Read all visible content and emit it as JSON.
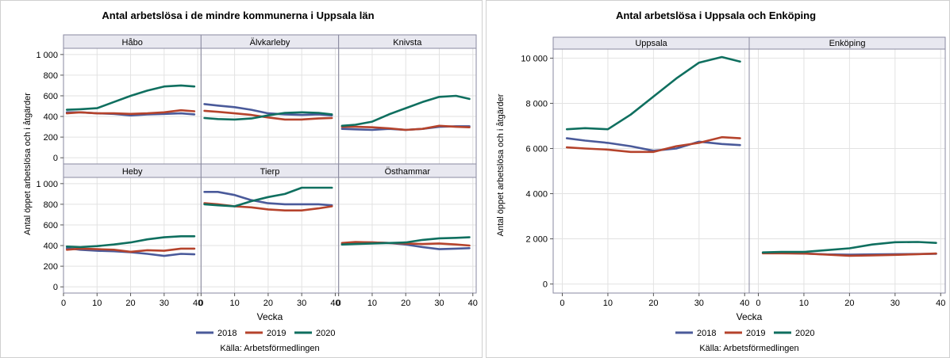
{
  "colors": {
    "2018": "#4a5a9a",
    "2019": "#b5432c",
    "2020": "#0f6f5f",
    "strip": "#e8e8f0",
    "grid": "#e2e2e2"
  },
  "chart_data": [
    {
      "type": "line",
      "title": "Antal arbetslösa i de mindre kommunerna i Uppsala län",
      "xlabel": "Vecka",
      "ylabel": "Antal öppet arbetslösa och i åtgärder",
      "xlim": [
        0,
        41
      ],
      "ylim": [
        -60,
        1060
      ],
      "xticks": [
        0,
        10,
        20,
        30,
        40
      ],
      "yticks": [
        0,
        200,
        400,
        600,
        800,
        1000
      ],
      "ytick_labels": [
        "0",
        "200",
        "400",
        "600",
        "800",
        "1 000"
      ],
      "legend": [
        "2018",
        "2019",
        "2020"
      ],
      "legend_position": "bottom",
      "source": "Källa: Arbetsförmedlingen",
      "panels": [
        {
          "name": "Håbo",
          "x": [
            1,
            5,
            10,
            15,
            20,
            25,
            30,
            35,
            39
          ],
          "series": [
            {
              "name": "2018",
              "values": [
                440,
                440,
                430,
                425,
                410,
                420,
                425,
                430,
                420
              ]
            },
            {
              "name": "2019",
              "values": [
                430,
                440,
                430,
                430,
                425,
                430,
                440,
                460,
                450
              ]
            },
            {
              "name": "2020",
              "values": [
                465,
                470,
                480,
                540,
                600,
                650,
                690,
                700,
                690
              ]
            }
          ]
        },
        {
          "name": "Älvkarleby",
          "x": [
            1,
            5,
            10,
            15,
            20,
            25,
            30,
            35,
            39
          ],
          "series": [
            {
              "name": "2018",
              "values": [
                520,
                505,
                490,
                465,
                430,
                420,
                415,
                420,
                410
              ]
            },
            {
              "name": "2019",
              "values": [
                455,
                445,
                430,
                415,
                390,
                370,
                370,
                380,
                385
              ]
            },
            {
              "name": "2020",
              "values": [
                385,
                375,
                370,
                380,
                410,
                435,
                440,
                435,
                420
              ]
            }
          ]
        },
        {
          "name": "Knivsta",
          "x": [
            1,
            5,
            10,
            15,
            20,
            25,
            30,
            35,
            39
          ],
          "series": [
            {
              "name": "2018",
              "values": [
                280,
                275,
                270,
                280,
                270,
                280,
                300,
                305,
                305
              ]
            },
            {
              "name": "2019",
              "values": [
                300,
                300,
                295,
                285,
                270,
                280,
                310,
                300,
                295
              ]
            },
            {
              "name": "2020",
              "values": [
                310,
                320,
                350,
                420,
                480,
                540,
                590,
                600,
                570
              ]
            }
          ]
        },
        {
          "name": "Heby",
          "x": [
            1,
            5,
            10,
            15,
            20,
            25,
            30,
            35,
            39
          ],
          "series": [
            {
              "name": "2018",
              "values": [
                375,
                360,
                350,
                345,
                335,
                320,
                300,
                320,
                315
              ]
            },
            {
              "name": "2019",
              "values": [
                360,
                370,
                365,
                360,
                340,
                355,
                350,
                370,
                370
              ]
            },
            {
              "name": "2020",
              "values": [
                390,
                385,
                395,
                410,
                430,
                460,
                480,
                490,
                490
              ]
            }
          ]
        },
        {
          "name": "Tierp",
          "x": [
            1,
            5,
            10,
            15,
            20,
            25,
            30,
            35,
            39
          ],
          "series": [
            {
              "name": "2018",
              "values": [
                920,
                920,
                890,
                840,
                810,
                800,
                800,
                800,
                790
              ]
            },
            {
              "name": "2019",
              "values": [
                810,
                800,
                780,
                770,
                750,
                740,
                740,
                760,
                780
              ]
            },
            {
              "name": "2020",
              "values": [
                800,
                790,
                780,
                830,
                870,
                900,
                960,
                960,
                960
              ]
            }
          ]
        },
        {
          "name": "Östhammar",
          "x": [
            1,
            5,
            10,
            15,
            20,
            25,
            30,
            35,
            39
          ],
          "series": [
            {
              "name": "2018",
              "values": [
                415,
                430,
                430,
                425,
                410,
                385,
                365,
                370,
                375
              ]
            },
            {
              "name": "2019",
              "values": [
                425,
                435,
                430,
                425,
                420,
                415,
                420,
                410,
                400
              ]
            },
            {
              "name": "2020",
              "values": [
                410,
                415,
                420,
                425,
                430,
                455,
                470,
                475,
                480
              ]
            }
          ]
        }
      ]
    },
    {
      "type": "line",
      "title": "Antal arbetslösa i Uppsala och Enköping",
      "xlabel": "Vecka",
      "ylabel": "Antal öppet arbetslösa och i åtgärder",
      "xlim": [
        -2,
        41
      ],
      "ylim": [
        -400,
        10400
      ],
      "xticks": [
        0,
        10,
        20,
        30,
        40
      ],
      "yticks": [
        0,
        2000,
        4000,
        6000,
        8000,
        10000
      ],
      "ytick_labels": [
        "0",
        "2 000",
        "4 000",
        "6 000",
        "8 000",
        "10 000"
      ],
      "legend": [
        "2018",
        "2019",
        "2020"
      ],
      "legend_position": "bottom",
      "source": "Källa: Arbetsförmedlingen",
      "panels": [
        {
          "name": "Uppsala",
          "x": [
            1,
            5,
            10,
            15,
            20,
            25,
            30,
            35,
            39
          ],
          "series": [
            {
              "name": "2018",
              "values": [
                6450,
                6350,
                6250,
                6100,
                5900,
                6000,
                6300,
                6200,
                6150
              ]
            },
            {
              "name": "2019",
              "values": [
                6050,
                6000,
                5950,
                5850,
                5850,
                6100,
                6250,
                6500,
                6450
              ]
            },
            {
              "name": "2020",
              "values": [
                6850,
                6900,
                6850,
                7500,
                8300,
                9100,
                9800,
                10050,
                9850
              ]
            }
          ]
        },
        {
          "name": "Enköping",
          "x": [
            1,
            5,
            10,
            15,
            20,
            25,
            30,
            35,
            39
          ],
          "series": [
            {
              "name": "2018",
              "values": [
                1380,
                1370,
                1350,
                1310,
                1300,
                1310,
                1320,
                1330,
                1340
              ]
            },
            {
              "name": "2019",
              "values": [
                1360,
                1360,
                1350,
                1300,
                1250,
                1270,
                1290,
                1320,
                1350
              ]
            },
            {
              "name": "2020",
              "values": [
                1400,
                1420,
                1420,
                1500,
                1580,
                1750,
                1850,
                1860,
                1820
              ]
            }
          ]
        }
      ]
    }
  ]
}
